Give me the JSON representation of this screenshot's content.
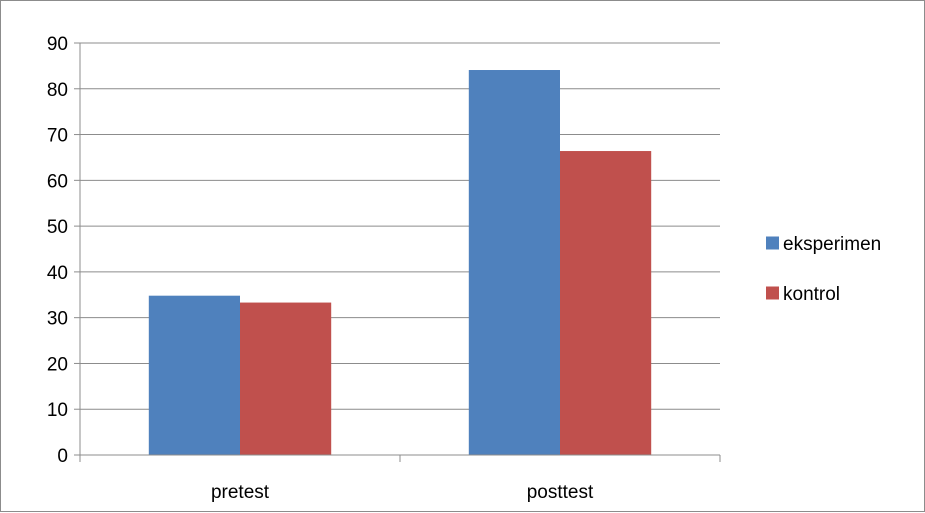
{
  "chart_data": {
    "type": "bar",
    "title": "",
    "xlabel": "",
    "ylabel": "",
    "categories": [
      "pretest",
      "posttest"
    ],
    "series": [
      {
        "name": "eksperimen",
        "values": [
          34.8,
          84.1
        ],
        "color": "#4f81bd"
      },
      {
        "name": "kontrol",
        "values": [
          33.3,
          66.4
        ],
        "color": "#c0504d"
      }
    ],
    "ylim": [
      0,
      90
    ],
    "yticks": [
      0,
      10,
      20,
      30,
      40,
      50,
      60,
      70,
      80,
      90
    ],
    "grid": true,
    "legend_position": "right"
  }
}
